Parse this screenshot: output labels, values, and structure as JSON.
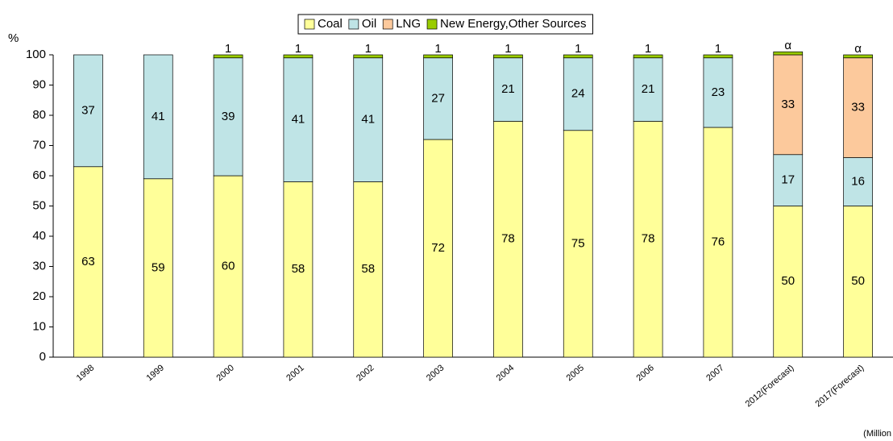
{
  "chart_data": {
    "type": "stacked_bar",
    "categories": [
      "1998",
      "1999",
      "2000",
      "2001",
      "2002",
      "2003",
      "2004",
      "2005",
      "2006",
      "2007",
      "2012(Forecast)",
      "2017(Forecast)"
    ],
    "series": [
      {
        "name": "Coal",
        "color": "#ffff99",
        "values": [
          63,
          59,
          60,
          58,
          58,
          72,
          78,
          75,
          78,
          76,
          50,
          50
        ]
      },
      {
        "name": "Oil",
        "color": "#bfe4e6",
        "values": [
          37,
          41,
          39,
          41,
          41,
          27,
          21,
          24,
          21,
          23,
          17,
          16
        ]
      },
      {
        "name": "LNG",
        "color": "#fcc99c",
        "values": [
          null,
          null,
          null,
          null,
          null,
          null,
          null,
          null,
          null,
          null,
          33,
          33
        ]
      },
      {
        "name": "New Energy,Other Sources",
        "color": "#99cc00",
        "values": [
          null,
          null,
          1,
          1,
          1,
          1,
          1,
          1,
          1,
          1,
          1,
          1
        ],
        "value_labels": [
          null,
          null,
          "1",
          "1",
          "1",
          "1",
          "1",
          "1",
          "1",
          "1",
          "α",
          "α"
        ]
      }
    ],
    "y_label": "%",
    "annotation": "(Million",
    "ylim": [
      0,
      100
    ],
    "yticks": [
      0,
      10,
      20,
      30,
      40,
      50,
      60,
      70,
      80,
      90,
      100
    ],
    "legend": "top"
  }
}
